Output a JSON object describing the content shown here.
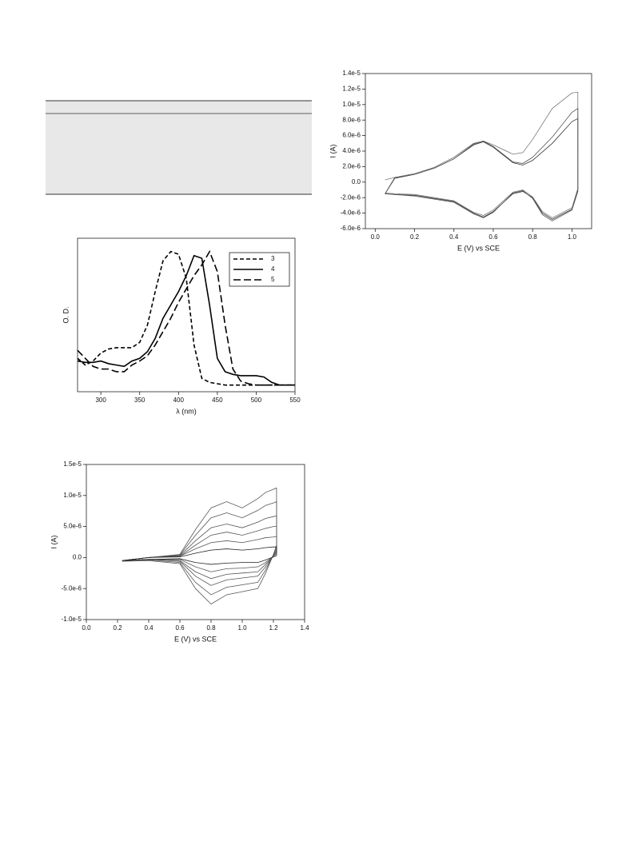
{
  "chart_data": [
    {
      "type": "line",
      "x_label": "E (V) vs SCE",
      "y_label": "I (A)",
      "xlim": [
        -0.05,
        1.1
      ],
      "ylim": [
        -6e-06,
        1.4e-05
      ],
      "xticks": [
        {
          "value": 0,
          "label": "0.0"
        },
        {
          "value": 0.2,
          "label": "0.2"
        },
        {
          "value": 0.4,
          "label": "0.4"
        },
        {
          "value": 0.6,
          "label": "0.6"
        },
        {
          "value": 0.8,
          "label": "0.8"
        },
        {
          "value": 1.0,
          "label": "1.0"
        }
      ],
      "yticks": [
        {
          "value": -6e-06,
          "label": "-6.0e-6"
        },
        {
          "value": -4e-06,
          "label": "-4.0e-6"
        },
        {
          "value": -2e-06,
          "label": "-2.0e-6"
        },
        {
          "value": 0,
          "label": "0.0"
        },
        {
          "value": 2e-06,
          "label": "2.0e-6"
        },
        {
          "value": 4e-06,
          "label": "4.0e-6"
        },
        {
          "value": 6e-06,
          "label": "6.0e-6"
        },
        {
          "value": 8e-06,
          "label": "8.0e-6"
        },
        {
          "value": 1e-05,
          "label": "1.0e-5"
        },
        {
          "value": 1.2e-05,
          "label": "1.2e-5"
        },
        {
          "value": 1.4e-05,
          "label": "1.4e-5"
        }
      ],
      "x": [
        0.05,
        0.1,
        0.2,
        0.3,
        0.4,
        0.5,
        0.55,
        0.6,
        0.7,
        0.75,
        0.8,
        0.9,
        1.0,
        1.03,
        1.03,
        1.0,
        0.9,
        0.85,
        0.8,
        0.75,
        0.7,
        0.6,
        0.55,
        0.5,
        0.4,
        0.2,
        0.1,
        0.05
      ],
      "series": [
        {
          "color": "#333333",
          "values": [
            -1.5e-06,
            5e-07,
            1e-06,
            1.8e-06,
            3e-06,
            4.8e-06,
            5.2e-06,
            4.5e-06,
            2.5e-06,
            2.2e-06,
            2.8e-06,
            5e-06,
            7.8e-06,
            8.2e-06,
            -1e-06,
            -3.5e-06,
            -4.8e-06,
            -4e-06,
            -2e-06,
            -1.2e-06,
            -1.5e-06,
            -3.8e-06,
            -4.5e-06,
            -4e-06,
            -2.5e-06,
            -1.7e-06,
            -1.6e-06,
            -1.5e-06
          ]
        },
        {
          "color": "#777777",
          "values": [
            3e-07,
            6e-07,
            1.1e-06,
            1.9e-06,
            3.2e-06,
            5e-06,
            5.3e-06,
            4.8e-06,
            3.6e-06,
            3.8e-06,
            5.5e-06,
            9.5e-06,
            1.15e-05,
            1.16e-05,
            -8e-07,
            -3.3e-06,
            -4.6e-06,
            -3.8e-06,
            -1.9e-06,
            -1e-06,
            -1.3e-06,
            -3.6e-06,
            -4.3e-06,
            -3.9e-06,
            -2.4e-06,
            -1.6e-06,
            -1.5e-06,
            -1.4e-06
          ]
        },
        {
          "color": "#555555",
          "values": [
            -1.5e-06,
            6e-07,
            1e-06,
            1.8e-06,
            3e-06,
            4.9e-06,
            5.3e-06,
            4.6e-06,
            2.6e-06,
            2.4e-06,
            3.2e-06,
            5.8e-06,
            9e-06,
            9.5e-06,
            -1.2e-06,
            -3.6e-06,
            -5e-06,
            -4.2e-06,
            -2.1e-06,
            -1.1e-06,
            -1.4e-06,
            -3.9e-06,
            -4.6e-06,
            -4.1e-06,
            -2.6e-06,
            -1.8e-06,
            -1.6e-06,
            -1.5e-06
          ]
        }
      ]
    },
    {
      "type": "line",
      "x_label": "λ (nm)",
      "y_label": "O. D.",
      "legend": "upper right",
      "xlim": [
        270,
        550
      ],
      "ylim": [
        -0.05,
        1.1
      ],
      "xticks": [
        300,
        350,
        400,
        450,
        500,
        550
      ],
      "x": [
        270,
        280,
        290,
        300,
        310,
        320,
        330,
        340,
        350,
        360,
        370,
        380,
        390,
        400,
        410,
        420,
        430,
        440,
        450,
        460,
        470,
        480,
        490,
        500,
        510,
        520,
        530,
        540,
        550
      ],
      "series": [
        {
          "name": "3",
          "color": "#000000",
          "dash": "short",
          "values": [
            0.2,
            0.15,
            0.18,
            0.24,
            0.27,
            0.28,
            0.28,
            0.28,
            0.32,
            0.45,
            0.7,
            0.93,
            1.0,
            0.98,
            0.8,
            0.3,
            0.05,
            0.02,
            0.01,
            0,
            0,
            0,
            0,
            0,
            0,
            0,
            0,
            0,
            0
          ]
        },
        {
          "name": "4",
          "color": "#000000",
          "dash": "solid",
          "values": [
            0.18,
            0.17,
            0.17,
            0.18,
            0.16,
            0.15,
            0.14,
            0.18,
            0.2,
            0.25,
            0.35,
            0.5,
            0.6,
            0.7,
            0.82,
            0.97,
            0.95,
            0.6,
            0.2,
            0.1,
            0.08,
            0.07,
            0.07,
            0.07,
            0.06,
            0.02,
            0,
            0,
            0
          ]
        },
        {
          "name": "5",
          "color": "#000000",
          "dash": "long",
          "values": [
            0.26,
            0.2,
            0.14,
            0.12,
            0.12,
            0.1,
            0.1,
            0.15,
            0.18,
            0.22,
            0.3,
            0.4,
            0.5,
            0.62,
            0.72,
            0.82,
            0.9,
            1.0,
            0.85,
            0.45,
            0.12,
            0.03,
            0.01,
            0,
            0,
            0,
            0,
            0,
            0
          ]
        }
      ]
    },
    {
      "type": "line",
      "x_label": "E (V) vs SCE",
      "y_label": "I (A)",
      "xlim": [
        0,
        1.4
      ],
      "ylim": [
        -1e-05,
        1.5e-05
      ],
      "xticks": [
        {
          "value": 0,
          "label": "0.0"
        },
        {
          "value": 0.2,
          "label": "0.2"
        },
        {
          "value": 0.4,
          "label": "0.4"
        },
        {
          "value": 0.6,
          "label": "0.6"
        },
        {
          "value": 0.8,
          "label": "0.8"
        },
        {
          "value": 1.0,
          "label": "1.0"
        },
        {
          "value": 1.2,
          "label": "1.2"
        },
        {
          "value": 1.4,
          "label": "1.4"
        }
      ],
      "yticks": [
        {
          "value": -1e-05,
          "label": "-1.0e-5"
        },
        {
          "value": -5e-06,
          "label": "-5.0e-6"
        },
        {
          "value": 0,
          "label": "0.0"
        },
        {
          "value": 5e-06,
          "label": "5.0e-6"
        },
        {
          "value": 1e-05,
          "label": "1.0e-5"
        },
        {
          "value": 1.5e-05,
          "label": "1.5e-5"
        }
      ],
      "x": [
        0.23,
        0.4,
        0.6,
        0.7,
        0.8,
        0.9,
        1.0,
        1.1,
        1.15,
        1.2,
        1.22,
        1.22,
        1.2,
        1.15,
        1.1,
        1.0,
        0.9,
        0.8,
        0.7,
        0.6,
        0.4,
        0.23
      ],
      "series": [
        {
          "color": "#555555",
          "values": [
            -5e-07,
            0,
            5e-07,
            4.5e-06,
            8e-06,
            9e-06,
            8e-06,
            9.5e-06,
            1.05e-05,
            1.1e-05,
            1.12e-05,
            2e-06,
            5e-07,
            -2.5e-06,
            -5e-06,
            -5.5e-06,
            -6e-06,
            -7.5e-06,
            -5e-06,
            -1e-06,
            -5e-07,
            -6e-07
          ]
        },
        {
          "color": "#555555",
          "values": [
            -5e-07,
            0,
            4e-07,
            3.6e-06,
            6.4e-06,
            7.2e-06,
            6.4e-06,
            7.6e-06,
            8.4e-06,
            8.8e-06,
            9e-06,
            1.6e-06,
            4e-07,
            -2e-06,
            -4e-06,
            -4.4e-06,
            -4.8e-06,
            -6e-06,
            -4e-06,
            -8e-07,
            -4e-07,
            -5e-07
          ]
        },
        {
          "color": "#555555",
          "values": [
            -5e-07,
            0,
            3e-07,
            2.7e-06,
            4.8e-06,
            5.4e-06,
            4.8e-06,
            5.7e-06,
            6.3e-06,
            6.6e-06,
            6.7e-06,
            1.2e-06,
            3e-07,
            -1.5e-06,
            -3e-06,
            -3.3e-06,
            -3.6e-06,
            -4.5e-06,
            -3e-06,
            -6e-07,
            -3e-07,
            -5e-07
          ]
        },
        {
          "color": "#555555",
          "values": [
            -5e-07,
            0,
            2e-07,
            2e-06,
            3.6e-06,
            4.1e-06,
            3.6e-06,
            4.3e-06,
            4.7e-06,
            5e-06,
            5e-06,
            9e-07,
            2e-07,
            -1.1e-06,
            -2.3e-06,
            -2.5e-06,
            -2.7e-06,
            -3.4e-06,
            -2.3e-06,
            -5e-07,
            -3e-07,
            -5e-07
          ]
        },
        {
          "color": "#555555",
          "values": [
            -5e-07,
            0,
            2e-07,
            1.4e-06,
            2.4e-06,
            2.7e-06,
            2.4e-06,
            2.9e-06,
            3.2e-06,
            3.3e-06,
            3.4e-06,
            6e-07,
            2e-07,
            -8e-07,
            -1.5e-06,
            -1.7e-06,
            -1.8e-06,
            -2.3e-06,
            -1.5e-06,
            -3e-07,
            -3e-07,
            -5e-07
          ]
        },
        {
          "color": "#222222",
          "values": [
            -5e-07,
            0,
            1e-07,
            7e-07,
            1.2e-06,
            1.4e-06,
            1.2e-06,
            1.4e-06,
            1.6e-06,
            1.7e-06,
            1.7e-06,
            3e-07,
            1e-07,
            -4e-07,
            -8e-07,
            -8e-07,
            -9e-07,
            -1.1e-06,
            -8e-07,
            -2e-07,
            -3e-07,
            -5e-07
          ]
        }
      ]
    }
  ]
}
